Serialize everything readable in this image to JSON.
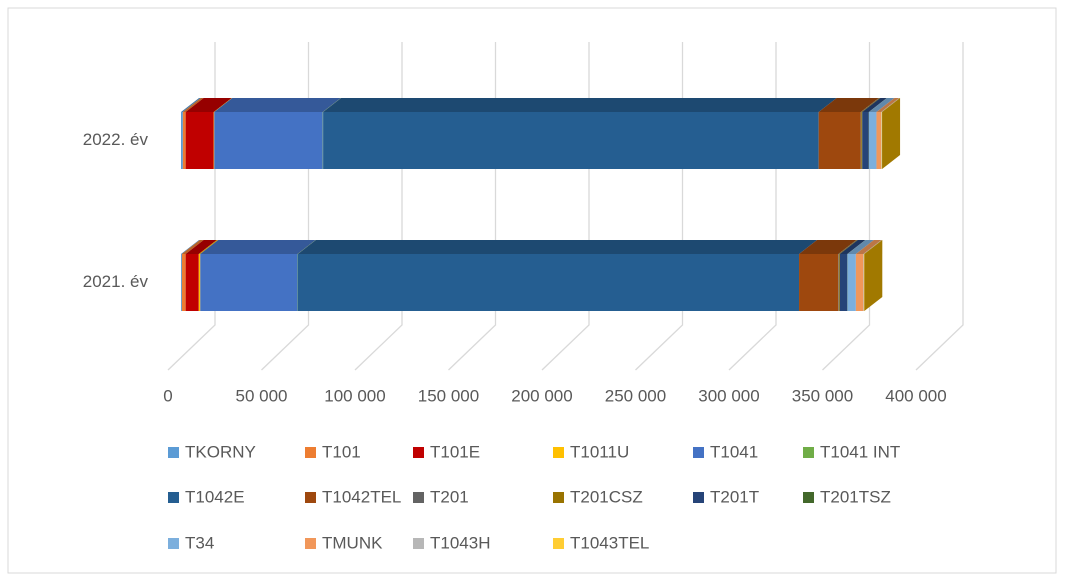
{
  "chart_data": {
    "type": "bar3d_stacked_horizontal",
    "categories": [
      "2021. év",
      "2022. év"
    ],
    "series": [
      {
        "name": "TKORNY",
        "color": "#5b9bd5",
        "values": [
          500,
          1000
        ]
      },
      {
        "name": "T101",
        "color": "#ed7d31",
        "values": [
          2000,
          1500
        ]
      },
      {
        "name": "T101E",
        "color": "#c00000",
        "values": [
          7000,
          15000
        ]
      },
      {
        "name": "T1011U",
        "color": "#ffc000",
        "values": [
          800,
          300
        ]
      },
      {
        "name": "T1041",
        "color": "#4472c4",
        "values": [
          52000,
          58000
        ]
      },
      {
        "name": "T1041 INT",
        "color": "#70ad47",
        "values": [
          200,
          200
        ]
      },
      {
        "name": "T1042E",
        "color": "#255e91",
        "values": [
          268000,
          265000
        ]
      },
      {
        "name": "T1042TEL",
        "color": "#9e480e",
        "values": [
          21000,
          22500
        ]
      },
      {
        "name": "T201",
        "color": "#636363",
        "values": [
          300,
          300
        ]
      },
      {
        "name": "T201CSZ",
        "color": "#997300",
        "values": [
          500,
          500
        ]
      },
      {
        "name": "T201T",
        "color": "#264478",
        "values": [
          4000,
          3500
        ]
      },
      {
        "name": "T201TSZ",
        "color": "#43682b",
        "values": [
          100,
          100
        ]
      },
      {
        "name": "T34",
        "color": "#7cafdd",
        "values": [
          4500,
          4000
        ]
      },
      {
        "name": "TMUNK",
        "color": "#f1975a",
        "values": [
          4000,
          2500
        ]
      },
      {
        "name": "T1043H",
        "color": "#b7b7b7",
        "values": [
          300,
          300
        ]
      },
      {
        "name": "T1043TEL",
        "color": "#ffcd33",
        "values": [
          200,
          200
        ]
      }
    ],
    "xlim": [
      0,
      400000
    ],
    "xticks": [
      0,
      {
        "value": 50000,
        "label": "50 000"
      },
      {
        "value": 100000,
        "label": "100 000"
      },
      {
        "value": 150000,
        "label": "150 000"
      },
      {
        "value": 200000,
        "label": "200 000"
      },
      {
        "value": 250000,
        "label": "250 000"
      },
      {
        "value": 300000,
        "label": "300 000"
      },
      {
        "value": 350000,
        "label": "350 000"
      },
      {
        "value": 400000,
        "label": "400 000"
      }
    ],
    "grid": true
  }
}
